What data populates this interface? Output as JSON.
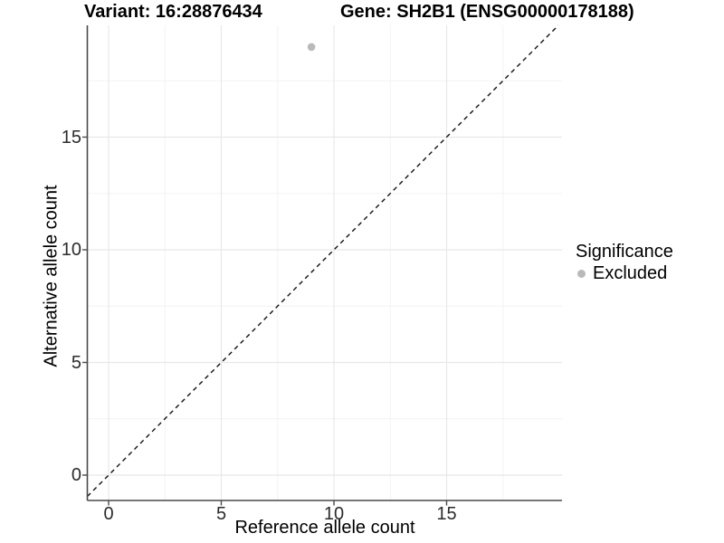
{
  "chart_data": {
    "type": "scatter",
    "title_left": "Variant: 16:28876434",
    "title_right": "Gene: SH2B1 (ENSG00000178188)",
    "xlabel": "Reference allele count",
    "ylabel": "Alternative allele count",
    "xticks": [
      0,
      5,
      10,
      15
    ],
    "yticks": [
      0,
      5,
      10,
      15
    ],
    "minor_xticks": [
      2.5,
      7.5,
      12.5,
      17.5
    ],
    "minor_yticks": [
      2.5,
      7.5,
      12.5,
      17.5
    ],
    "xlim": [
      -0.94,
      20.12
    ],
    "ylim": [
      -1.12,
      19.96
    ],
    "grid": "major+minor",
    "points": [
      {
        "x": 9,
        "y": 19,
        "significance": "Excluded"
      }
    ],
    "reference_line": {
      "type": "identity",
      "slope": 1,
      "intercept": 0,
      "style": "dashed",
      "color": "#111111"
    },
    "legend": {
      "title": "Significance",
      "position": "right",
      "items": [
        {
          "label": "Excluded",
          "marker": "circle",
          "color": "#b9b9b9"
        }
      ]
    },
    "colors": {
      "point": "#b9b9b9",
      "grid_major": "#e8e8e8",
      "grid_minor": "#f3f3f3",
      "axis_line": "#4a4a4a",
      "tick_mark": "#4a4a4a",
      "tick_label": "#2b2b2b",
      "background": "#ffffff"
    }
  }
}
